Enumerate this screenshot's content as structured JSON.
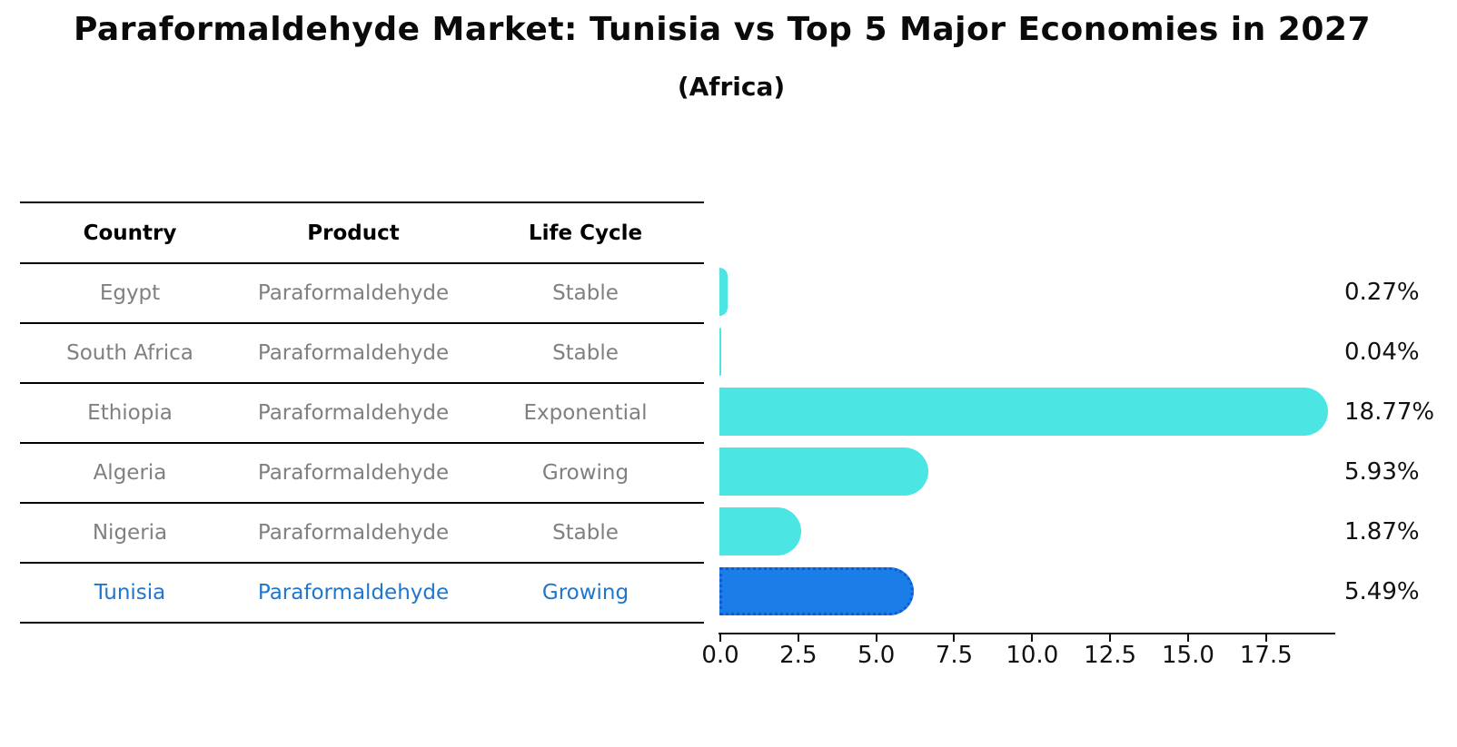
{
  "title": "Paraformaldehyde Market: Tunisia vs Top 5 Major Economies in 2027",
  "subtitle": "(Africa)",
  "table": {
    "headers": [
      "Country",
      "Product",
      "Life Cycle"
    ],
    "rows": [
      {
        "country": "Egypt",
        "product": "Paraformaldehyde",
        "life_cycle": "Stable",
        "highlight": false
      },
      {
        "country": "South Africa",
        "product": "Paraformaldehyde",
        "life_cycle": "Stable",
        "highlight": false
      },
      {
        "country": "Ethiopia",
        "product": "Paraformaldehyde",
        "life_cycle": "Exponential",
        "highlight": false
      },
      {
        "country": "Algeria",
        "product": "Paraformaldehyde",
        "life_cycle": "Growing",
        "highlight": false
      },
      {
        "country": "Nigeria",
        "product": "Paraformaldehyde",
        "life_cycle": "Stable",
        "highlight": false
      },
      {
        "country": "Tunisia",
        "product": "Paraformaldehyde",
        "life_cycle": "Growing",
        "highlight": true
      }
    ]
  },
  "chart_data": {
    "type": "bar",
    "orientation": "horizontal",
    "title": "Paraformaldehyde Market: Tunisia vs Top 5 Major Economies in 2027",
    "subtitle": "(Africa)",
    "categories": [
      "Egypt",
      "South Africa",
      "Ethiopia",
      "Algeria",
      "Nigeria",
      "Tunisia"
    ],
    "values": [
      0.27,
      0.04,
      18.77,
      5.93,
      1.87,
      5.49
    ],
    "value_labels": [
      "0.27%",
      "0.04%",
      "18.77%",
      "5.93%",
      "1.87%",
      "5.49%"
    ],
    "unit": "%",
    "x_ticks": [
      0.0,
      2.5,
      5.0,
      7.5,
      10.0,
      12.5,
      15.0,
      17.5
    ],
    "x_tick_labels": [
      "0.0",
      "2.5",
      "5.0",
      "7.5",
      "10.0",
      "12.5",
      "15.0",
      "17.5"
    ],
    "xlim": [
      0,
      19.7
    ],
    "grid": false,
    "legend": false,
    "bar_color": "#4be5e3",
    "highlight_index": 5,
    "highlight_color": "#1a7de8",
    "highlight_border_color": "#0d5bd5",
    "label_color": "#111111",
    "highlight_text_color": "#1e76cf"
  }
}
